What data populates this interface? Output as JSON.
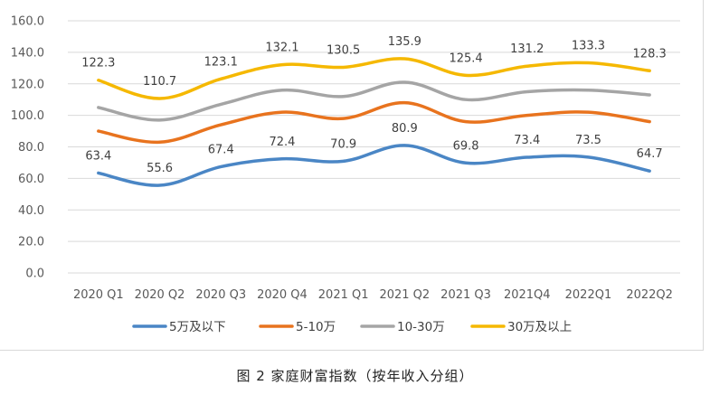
{
  "chart_data": {
    "type": "line",
    "categories": [
      "2020 Q1",
      "2020 Q2",
      "2020 Q3",
      "2020 Q4",
      "2021 Q1",
      "2021 Q2",
      "2021 Q3",
      "2021Q4",
      "2022Q1",
      "2022Q2"
    ],
    "ylim": [
      0,
      160
    ],
    "yticks": [
      "0.0",
      "20.0",
      "40.0",
      "60.0",
      "80.0",
      "100.0",
      "120.0",
      "140.0",
      "160.0"
    ],
    "legend_position": "bottom",
    "series": [
      {
        "name": "5万及以下",
        "color": "#4a86c5",
        "labeled": true,
        "values": [
          63.4,
          55.6,
          67.4,
          72.4,
          70.9,
          80.9,
          69.8,
          73.4,
          73.5,
          64.7
        ]
      },
      {
        "name": "5-10万",
        "color": "#e8731e",
        "labeled": false,
        "values": [
          90,
          83,
          94,
          102,
          98,
          108,
          96,
          100,
          102,
          96
        ]
      },
      {
        "name": "10-30万",
        "color": "#a5a5a5",
        "labeled": false,
        "values": [
          105,
          97,
          107,
          116,
          112,
          121,
          110,
          115,
          116,
          113
        ]
      },
      {
        "name": "30万及以上",
        "color": "#f5b800",
        "labeled": true,
        "values": [
          122.3,
          110.7,
          123.1,
          132.1,
          130.5,
          135.9,
          125.4,
          131.2,
          133.3,
          128.3
        ]
      }
    ]
  },
  "caption": "图 2 家庭财富指数（按年收入分组）"
}
